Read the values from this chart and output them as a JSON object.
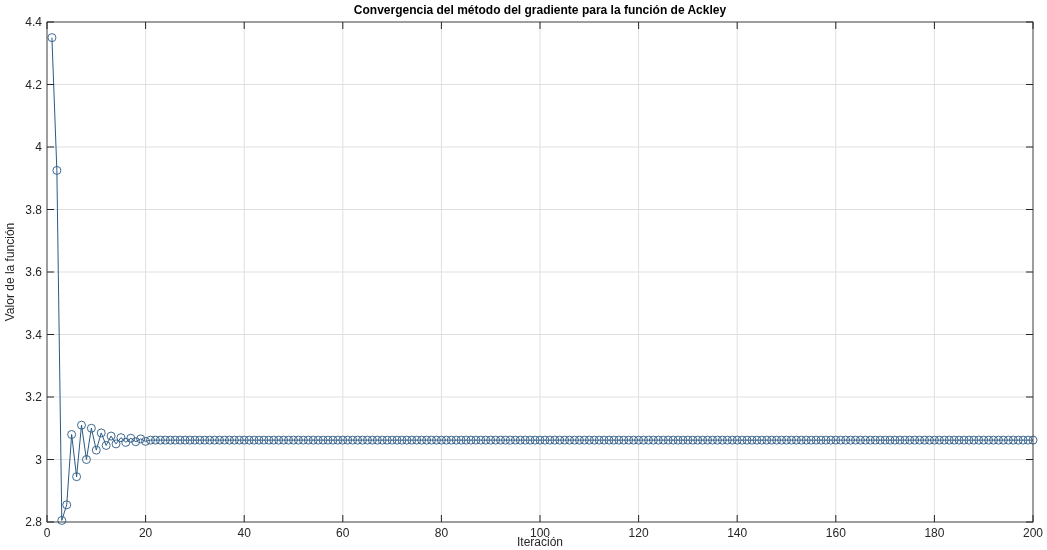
{
  "chart_data": {
    "type": "line",
    "title": "Convergencia del método del gradiente para la función de Ackley",
    "xlabel": "Iteración",
    "ylabel": "Valor de la función",
    "series": [
      {
        "color": "#2b5a85",
        "x": [
          1,
          2,
          3,
          4,
          5,
          6,
          7,
          8,
          9,
          10,
          11,
          12,
          13,
          14,
          15,
          16,
          17,
          18,
          19,
          20,
          21,
          22,
          23,
          24,
          25,
          26,
          27,
          28,
          29,
          30,
          31,
          32,
          33,
          34,
          35,
          36,
          37,
          38,
          39,
          40,
          41,
          42,
          43,
          44,
          45,
          46,
          47,
          48,
          49,
          50,
          51,
          52,
          53,
          54,
          55,
          56,
          57,
          58,
          59,
          60,
          61,
          62,
          63,
          64,
          65,
          66,
          67,
          68,
          69,
          70,
          71,
          72,
          73,
          74,
          75,
          76,
          77,
          78,
          79,
          80,
          81,
          82,
          83,
          84,
          85,
          86,
          87,
          88,
          89,
          90,
          91,
          92,
          93,
          94,
          95,
          96,
          97,
          98,
          99,
          100,
          101,
          102,
          103,
          104,
          105,
          106,
          107,
          108,
          109,
          110,
          111,
          112,
          113,
          114,
          115,
          116,
          117,
          118,
          119,
          120,
          121,
          122,
          123,
          124,
          125,
          126,
          127,
          128,
          129,
          130,
          131,
          132,
          133,
          134,
          135,
          136,
          137,
          138,
          139,
          140,
          141,
          142,
          143,
          144,
          145,
          146,
          147,
          148,
          149,
          150,
          151,
          152,
          153,
          154,
          155,
          156,
          157,
          158,
          159,
          160,
          161,
          162,
          163,
          164,
          165,
          166,
          167,
          168,
          169,
          170,
          171,
          172,
          173,
          174,
          175,
          176,
          177,
          178,
          179,
          180,
          181,
          182,
          183,
          184,
          185,
          186,
          187,
          188,
          189,
          190,
          191,
          192,
          193,
          194,
          195,
          196,
          197,
          198,
          199,
          200
        ],
        "values": [
          4.35,
          3.925,
          2.805,
          2.855,
          3.08,
          2.945,
          3.11,
          3.0,
          3.1,
          3.03,
          3.085,
          3.045,
          3.075,
          3.05,
          3.07,
          3.055,
          3.068,
          3.057,
          3.066,
          3.058,
          3.062,
          3.062,
          3.062,
          3.062,
          3.062,
          3.062,
          3.062,
          3.062,
          3.062,
          3.062,
          3.062,
          3.062,
          3.062,
          3.062,
          3.062,
          3.062,
          3.062,
          3.062,
          3.062,
          3.062,
          3.062,
          3.062,
          3.062,
          3.062,
          3.062,
          3.062,
          3.062,
          3.062,
          3.062,
          3.062,
          3.062,
          3.062,
          3.062,
          3.062,
          3.062,
          3.062,
          3.062,
          3.062,
          3.062,
          3.062,
          3.062,
          3.062,
          3.062,
          3.062,
          3.062,
          3.062,
          3.062,
          3.062,
          3.062,
          3.062,
          3.062,
          3.062,
          3.062,
          3.062,
          3.062,
          3.062,
          3.062,
          3.062,
          3.062,
          3.062,
          3.062,
          3.062,
          3.062,
          3.062,
          3.062,
          3.062,
          3.062,
          3.062,
          3.062,
          3.062,
          3.062,
          3.062,
          3.062,
          3.062,
          3.062,
          3.062,
          3.062,
          3.062,
          3.062,
          3.062,
          3.062,
          3.062,
          3.062,
          3.062,
          3.062,
          3.062,
          3.062,
          3.062,
          3.062,
          3.062,
          3.062,
          3.062,
          3.062,
          3.062,
          3.062,
          3.062,
          3.062,
          3.062,
          3.062,
          3.062,
          3.062,
          3.062,
          3.062,
          3.062,
          3.062,
          3.062,
          3.062,
          3.062,
          3.062,
          3.062,
          3.062,
          3.062,
          3.062,
          3.062,
          3.062,
          3.062,
          3.062,
          3.062,
          3.062,
          3.062,
          3.062,
          3.062,
          3.062,
          3.062,
          3.062,
          3.062,
          3.062,
          3.062,
          3.062,
          3.062,
          3.062,
          3.062,
          3.062,
          3.062,
          3.062,
          3.062,
          3.062,
          3.062,
          3.062,
          3.062,
          3.062,
          3.062,
          3.062,
          3.062,
          3.062,
          3.062,
          3.062,
          3.062,
          3.062,
          3.062,
          3.062,
          3.062,
          3.062,
          3.062,
          3.062,
          3.062,
          3.062,
          3.062,
          3.062,
          3.062,
          3.062,
          3.062,
          3.062,
          3.062,
          3.062,
          3.062,
          3.062,
          3.062,
          3.062,
          3.062,
          3.062,
          3.062,
          3.062,
          3.062,
          3.062,
          3.062,
          3.062,
          3.062,
          3.062,
          3.062
        ]
      }
    ],
    "xlim": [
      0,
      200
    ],
    "xticks": [
      0,
      20,
      40,
      60,
      80,
      100,
      120,
      140,
      160,
      180,
      200
    ],
    "ylim": [
      2.8,
      4.4
    ],
    "yticks": [
      2.8,
      3,
      3.2,
      3.4,
      3.6,
      3.8,
      4,
      4.2,
      4.4
    ],
    "grid": true,
    "marker": "circle",
    "line_style": "solid"
  }
}
